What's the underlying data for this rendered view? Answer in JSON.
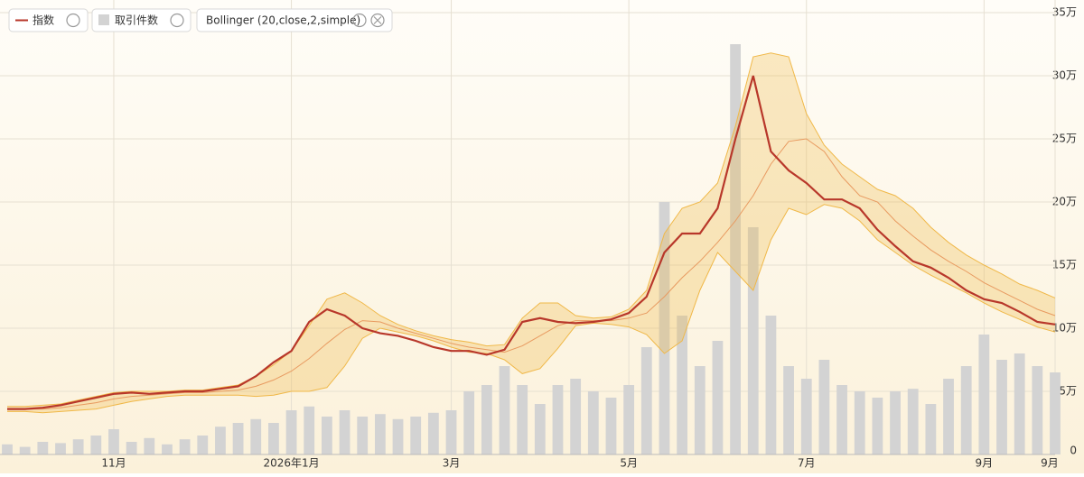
{
  "chart_data": {
    "type": "line",
    "categories": [
      null,
      null,
      null,
      null,
      null,
      null,
      "11月",
      null,
      null,
      null,
      null,
      null,
      null,
      null,
      null,
      null,
      "2026年1月",
      null,
      null,
      null,
      null,
      null,
      null,
      null,
      null,
      "3月",
      null,
      null,
      null,
      null,
      null,
      null,
      null,
      null,
      null,
      "5月",
      null,
      null,
      null,
      null,
      null,
      null,
      null,
      null,
      null,
      "7月",
      null,
      null,
      null,
      null,
      null,
      null,
      null,
      null,
      null,
      "9月",
      null,
      null,
      null,
      "9月"
    ],
    "series": [
      {
        "name": "指数",
        "type": "line",
        "color": "#b8372a",
        "values": [
          36000,
          36000,
          37000,
          39000,
          42000,
          45000,
          48000,
          49000,
          48000,
          49000,
          50000,
          50000,
          52000,
          54000,
          62000,
          73000,
          82000,
          105000,
          115000,
          110000,
          100000,
          96000,
          94000,
          90000,
          85000,
          82000,
          82000,
          79000,
          83000,
          105000,
          108000,
          105000,
          104000,
          105000,
          107000,
          112000,
          125000,
          160000,
          175000,
          175000,
          195000,
          250000,
          300000,
          240000,
          225000,
          215000,
          202000,
          202000,
          195000,
          178000,
          165000,
          153000,
          148000,
          140000,
          130000,
          123000,
          120000,
          113000,
          105000,
          103000
        ]
      },
      {
        "name": "取引件数",
        "type": "bar",
        "color": "#d3d3d3",
        "values": [
          8000,
          6000,
          10000,
          9000,
          12000,
          15000,
          20000,
          10000,
          13000,
          8000,
          12000,
          15000,
          22000,
          25000,
          28000,
          25000,
          35000,
          38000,
          30000,
          35000,
          30000,
          32000,
          28000,
          30000,
          33000,
          35000,
          50000,
          55000,
          70000,
          55000,
          40000,
          55000,
          60000,
          50000,
          45000,
          55000,
          85000,
          200000,
          110000,
          70000,
          90000,
          325000,
          180000,
          110000,
          70000,
          60000,
          75000,
          55000,
          50000,
          45000,
          50000,
          52000,
          40000,
          60000,
          70000,
          95000,
          75000,
          80000,
          70000,
          65000
        ]
      }
    ],
    "bollinger": {
      "name": "Bollinger (20,close,2,simple)",
      "color": "#f0b848",
      "middle_color": "#e89a60",
      "upper": [
        38000,
        38000,
        39000,
        40000,
        43000,
        46000,
        49000,
        50000,
        50000,
        50000,
        51000,
        51000,
        53000,
        55000,
        62000,
        71000,
        82000,
        102000,
        123000,
        128000,
        120000,
        110000,
        103000,
        98000,
        94000,
        91000,
        89000,
        86000,
        87000,
        108000,
        120000,
        120000,
        110000,
        108000,
        109000,
        115000,
        130000,
        175000,
        195000,
        200000,
        215000,
        260000,
        315000,
        318000,
        315000,
        270000,
        245000,
        230000,
        220000,
        210000,
        205000,
        195000,
        180000,
        168000,
        158000,
        150000,
        143000,
        135000,
        130000,
        124000
      ],
      "middle": [
        36000,
        36000,
        36000,
        37000,
        39000,
        41000,
        44000,
        46000,
        47000,
        48000,
        49000,
        49000,
        50000,
        51000,
        54000,
        59000,
        66000,
        76000,
        88000,
        99000,
        106000,
        105000,
        100000,
        96000,
        92000,
        88000,
        85000,
        83000,
        81000,
        86000,
        94000,
        102000,
        106000,
        106000,
        106000,
        108000,
        112000,
        125000,
        140000,
        153000,
        168000,
        185000,
        205000,
        230000,
        248000,
        250000,
        240000,
        220000,
        205000,
        200000,
        185000,
        173000,
        162000,
        153000,
        145000,
        136000,
        129000,
        122000,
        115000,
        110000
      ],
      "lower": [
        34000,
        34000,
        33000,
        34000,
        35000,
        36000,
        39000,
        42000,
        44000,
        46000,
        47000,
        47000,
        47000,
        47000,
        46000,
        47000,
        50000,
        50000,
        53000,
        70000,
        92000,
        100000,
        97000,
        94000,
        90000,
        85000,
        81000,
        80000,
        75000,
        64000,
        68000,
        84000,
        102000,
        104000,
        103000,
        101000,
        95000,
        80000,
        90000,
        130000,
        160000,
        145000,
        130000,
        170000,
        195000,
        190000,
        198000,
        195000,
        185000,
        170000,
        160000,
        150000,
        142000,
        135000,
        128000,
        120000,
        113000,
        107000,
        101000,
        97000
      ]
    },
    "ylim": [
      0,
      350000
    ],
    "yticks": [
      0,
      {
        "value": 50000,
        "label": "5万"
      },
      {
        "value": 100000,
        "label": "10万"
      },
      {
        "value": 150000,
        "label": "15万"
      },
      {
        "value": 200000,
        "label": "20万"
      },
      {
        "value": 250000,
        "label": "25万"
      },
      {
        "value": 300000,
        "label": "30万"
      },
      {
        "value": 350000,
        "label": "35万"
      }
    ],
    "grid": true
  }
}
